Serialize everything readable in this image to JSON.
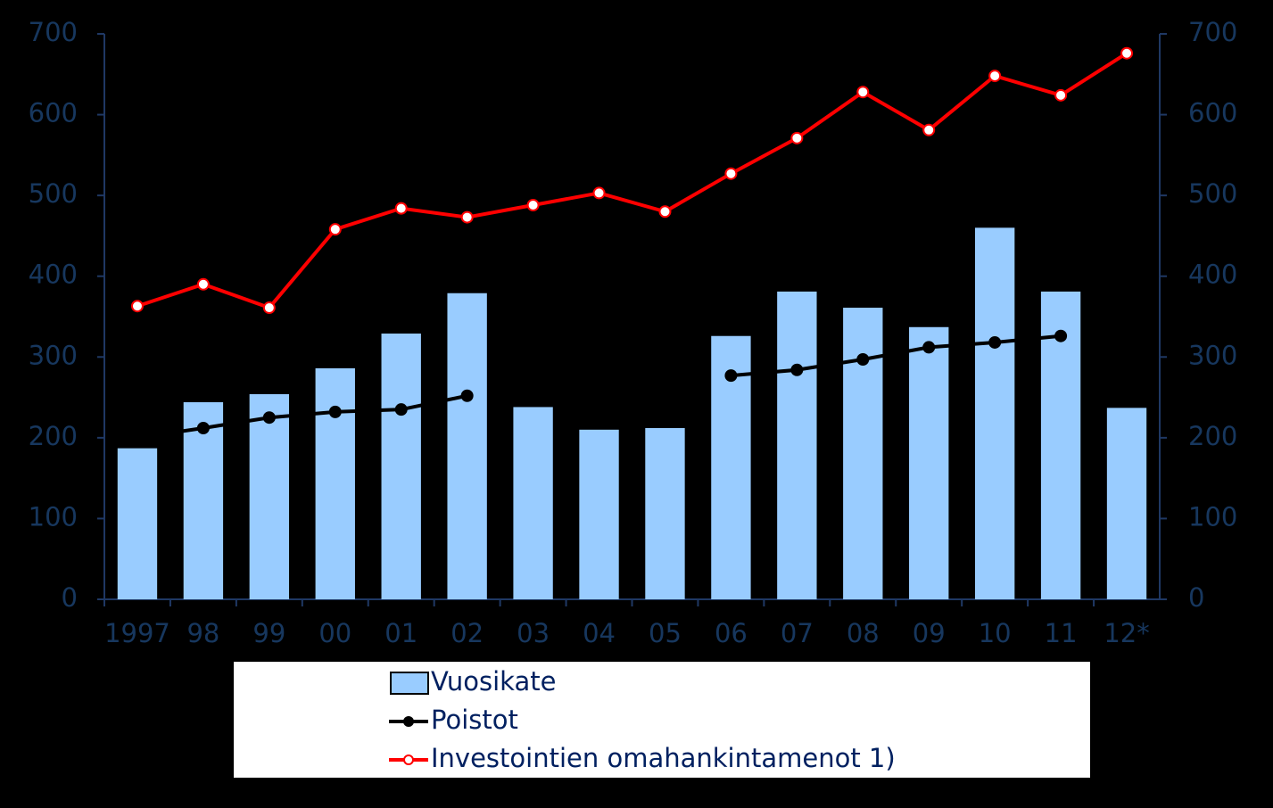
{
  "chart_data": {
    "type": "bar-line",
    "categories": [
      "1997",
      "98",
      "99",
      "00",
      "01",
      "02",
      "03",
      "04",
      "05",
      "06",
      "07",
      "08",
      "09",
      "10",
      "11",
      "12*"
    ],
    "series": [
      {
        "name": "Vuosikate",
        "type": "bar",
        "color": "#99ccff",
        "values": [
          187,
          244,
          254,
          286,
          329,
          379,
          238,
          210,
          212,
          326,
          381,
          361,
          337,
          460,
          381,
          237
        ]
      },
      {
        "name": "Poistot",
        "type": "line",
        "color": "#000000",
        "marker_fill": "#000000",
        "values": [
          200,
          212,
          225,
          232,
          235,
          252,
          null,
          null,
          null,
          277,
          284,
          297,
          312,
          318,
          326,
          null
        ]
      },
      {
        "name": "Investointien omahankintamenot 1)",
        "type": "line",
        "color": "#ff0000",
        "marker_fill": "#ffffff",
        "values": [
          363,
          390,
          361,
          458,
          484,
          473,
          488,
          503,
          480,
          527,
          571,
          628,
          581,
          648,
          624,
          676
        ]
      }
    ],
    "ylim": [
      0,
      700
    ],
    "yticks": [
      0,
      100,
      200,
      300,
      400,
      500,
      600,
      700
    ],
    "y2lim": [
      0,
      700
    ],
    "y2ticks": [
      0,
      100,
      200,
      300,
      400,
      500,
      600,
      700
    ]
  }
}
